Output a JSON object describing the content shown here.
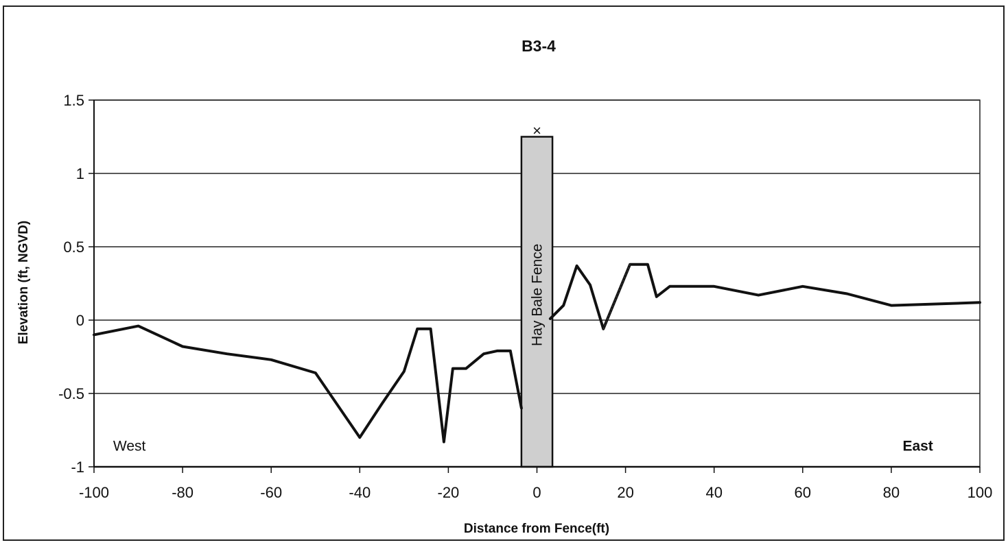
{
  "chart_data": {
    "type": "line",
    "title": "B3-4",
    "xlabel": "Distance from Fence(ft)",
    "ylabel": "Elevation (ft, NGVD)",
    "xlim": [
      -100,
      100
    ],
    "ylim": [
      -1,
      1.5
    ],
    "x_ticks": [
      -100,
      -80,
      -60,
      -40,
      -20,
      0,
      20,
      40,
      60,
      80,
      100
    ],
    "y_ticks": [
      1.5,
      1,
      0.5,
      0,
      -0.5,
      -1
    ],
    "x_tick_labels": [
      "-100",
      "-80",
      "-60",
      "-40",
      "-20",
      "0",
      "20",
      "40",
      "60",
      "80",
      "100"
    ],
    "y_tick_labels": [
      "1.5",
      "1",
      "0.5",
      "0",
      "-0.5",
      "-1"
    ],
    "grid": "horizontal",
    "legend": "none",
    "series": [
      {
        "style": "solid",
        "color": "#111111",
        "segments": [
          {
            "x": [
              -100,
              -90,
              -80,
              -70,
              -60,
              -50,
              -40,
              -35,
              -30,
              -27,
              -24,
              -21,
              -19,
              -16,
              -12,
              -9,
              -6,
              -3.5
            ],
            "y": [
              -0.1,
              -0.04,
              -0.18,
              -0.23,
              -0.27,
              -0.36,
              -0.8,
              -0.57,
              -0.35,
              -0.06,
              -0.06,
              -0.83,
              -0.33,
              -0.33,
              -0.23,
              -0.21,
              -0.21,
              -0.6
            ]
          },
          {
            "x": [
              3,
              6,
              9,
              12,
              15,
              21,
              23,
              25,
              27,
              30,
              40,
              50,
              60,
              70,
              80,
              90,
              100
            ],
            "y": [
              0.01,
              0.1,
              0.37,
              0.24,
              -0.06,
              0.38,
              0.38,
              0.38,
              0.16,
              0.23,
              0.23,
              0.17,
              0.23,
              0.18,
              0.1,
              0.11,
              0.12
            ]
          }
        ]
      },
      {
        "style": "dotted",
        "color": "#333333",
        "segments": [
          {
            "x": [
              15,
              21
            ],
            "y": [
              -0.06,
              0.38
            ]
          }
        ]
      }
    ],
    "fence": {
      "label": "Hay Bale Fence",
      "x_from": -3.5,
      "x_to": 3.5,
      "top": 1.25,
      "color": "#cfcfcf",
      "marker": "×",
      "marker_x": 0,
      "marker_y": 1.28
    },
    "annotations": [
      {
        "text": "West",
        "x": -92,
        "y": -0.89,
        "weight": "normal"
      },
      {
        "text": "East",
        "x": 86,
        "y": -0.89,
        "weight": "bold"
      }
    ]
  }
}
